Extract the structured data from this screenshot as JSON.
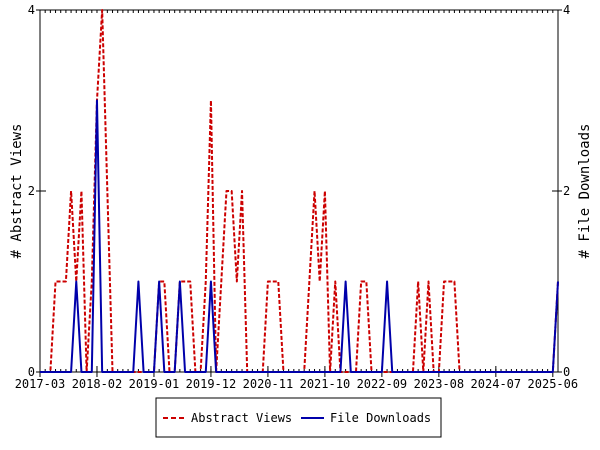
{
  "chart_data": {
    "type": "line",
    "title": "",
    "ylabel_left": "# Abstract Views",
    "ylabel_right": "# File Downloads",
    "ylim": [
      0,
      4
    ],
    "y_ticks": [
      0,
      2,
      4
    ],
    "x_tick_labels": [
      "2017-03",
      "2018-02",
      "2019-01",
      "2019-12",
      "2020-11",
      "2021-10",
      "2022-09",
      "2023-08",
      "2024-07",
      "2025-06"
    ],
    "x_tick_indices": [
      0,
      11,
      22,
      33,
      44,
      55,
      66,
      77,
      88,
      99
    ],
    "x_count": 101,
    "legend": {
      "position": "bottom-center",
      "entries": [
        "Abstract Views",
        "File Downloads"
      ]
    },
    "series": [
      {
        "name": "Abstract Views",
        "color": "#cc0000",
        "dash": "dashed",
        "values": [
          0,
          0,
          0,
          1,
          1,
          1,
          2,
          1,
          2,
          0,
          1,
          3,
          4,
          2,
          0,
          0,
          0,
          0,
          0,
          0,
          0,
          0,
          0,
          1,
          1,
          0,
          0,
          1,
          1,
          1,
          0,
          0,
          1,
          3,
          0,
          1,
          2,
          2,
          1,
          2,
          0,
          0,
          0,
          0,
          1,
          1,
          1,
          0,
          0,
          0,
          0,
          0,
          1,
          2,
          1,
          2,
          0,
          1,
          0,
          0,
          0,
          0,
          1,
          1,
          0,
          0,
          0,
          0,
          0,
          0,
          0,
          0,
          0,
          1,
          0,
          1,
          0,
          0,
          1,
          1,
          1,
          0,
          0,
          0,
          0,
          0,
          0,
          0,
          0,
          0,
          0,
          0,
          0,
          0,
          0,
          0,
          0,
          0,
          0,
          0,
          1
        ]
      },
      {
        "name": "File Downloads",
        "color": "#0000aa",
        "dash": "solid",
        "values": [
          0,
          0,
          0,
          0,
          0,
          0,
          0,
          1,
          0,
          0,
          0,
          3,
          0,
          0,
          0,
          0,
          0,
          0,
          0,
          1,
          0,
          0,
          0,
          1,
          0,
          0,
          0,
          1,
          0,
          0,
          0,
          0,
          0,
          1,
          0,
          0,
          0,
          0,
          0,
          0,
          0,
          0,
          0,
          0,
          0,
          0,
          0,
          0,
          0,
          0,
          0,
          0,
          0,
          0,
          0,
          0,
          0,
          0,
          0,
          1,
          0,
          0,
          0,
          0,
          0,
          0,
          0,
          1,
          0,
          0,
          0,
          0,
          0,
          0,
          0,
          0,
          0,
          0,
          0,
          0,
          0,
          0,
          0,
          0,
          0,
          0,
          0,
          0,
          0,
          0,
          0,
          0,
          0,
          0,
          0,
          0,
          0,
          0,
          0,
          0,
          1
        ]
      }
    ]
  }
}
